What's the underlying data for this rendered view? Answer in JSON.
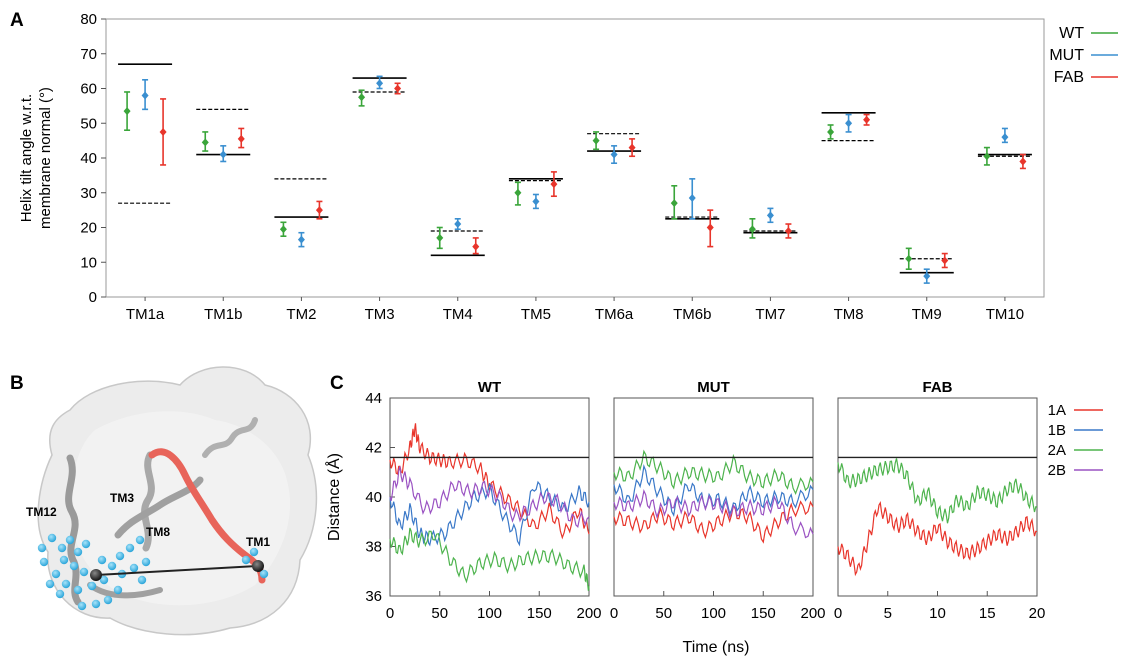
{
  "panel_labels": {
    "a": "A",
    "b": "B",
    "c": "C"
  },
  "colors": {
    "wt": "#3aa53a",
    "mut": "#3a8fd0",
    "fab": "#e8352b",
    "line_1a": "#e8352b",
    "line_1b": "#3a78c8",
    "line_2a": "#4db34d",
    "line_2b": "#9a52c2",
    "ref": "#000000",
    "helix_highlight": "#e8645a",
    "helix_gray": "#9a9a9a",
    "bead": "#37b6e6"
  },
  "structure_labels": [
    "TM12",
    "TM3",
    "TM8",
    "TM1"
  ],
  "chart_data": [
    {
      "type": "scatter",
      "ylabel": "Helix tilt angle w.r.t.\nmembrane normal (°)",
      "xlabel": "",
      "categories": [
        "TM1a",
        "TM1b",
        "TM2",
        "TM3",
        "TM4",
        "TM5",
        "TM6a",
        "TM6b",
        "TM7",
        "TM8",
        "TM9",
        "TM10"
      ],
      "yticks": [
        0,
        10,
        20,
        30,
        40,
        50,
        60,
        70,
        80
      ],
      "ylim": [
        0,
        80
      ],
      "legend": "top-right",
      "series": [
        {
          "name": "WT",
          "color": "#3aa53a",
          "values": [
            53.5,
            44.5,
            19.5,
            57.5,
            17,
            30,
            45,
            27,
            19.5,
            47.5,
            11,
            40.5
          ],
          "lower": [
            48,
            42,
            17.5,
            55,
            14,
            26.5,
            42.5,
            22.5,
            17,
            45.5,
            8,
            38
          ],
          "upper": [
            59,
            47.5,
            21.5,
            59.5,
            20,
            33,
            47.5,
            32,
            22.5,
            49.5,
            14,
            43
          ]
        },
        {
          "name": "MUT",
          "color": "#3a8fd0",
          "values": [
            58,
            41,
            16.5,
            61.5,
            21,
            27.5,
            41,
            28.5,
            23.5,
            50,
            6,
            46
          ],
          "lower": [
            54,
            39,
            14.5,
            60,
            19.5,
            25.5,
            38.5,
            22.5,
            21.5,
            47.5,
            4,
            44.5
          ],
          "upper": [
            62.5,
            43.5,
            18.5,
            63.5,
            22.5,
            29.5,
            43.5,
            34,
            25.5,
            52.5,
            8,
            48.5
          ]
        },
        {
          "name": "FAB",
          "color": "#e8352b",
          "values": [
            47.5,
            45.5,
            25,
            60,
            14.5,
            32.5,
            43,
            20,
            19,
            51,
            10.5,
            39
          ],
          "lower": [
            38,
            43,
            22.5,
            58.5,
            12.5,
            29,
            40.5,
            14.5,
            17,
            49.5,
            8.5,
            37
          ],
          "upper": [
            57,
            48.5,
            27.5,
            61.5,
            17,
            36,
            45.5,
            25,
            21,
            52.5,
            12.5,
            41
          ]
        }
      ],
      "reference_solid": [
        67,
        41,
        23,
        63,
        12,
        34,
        42,
        22.5,
        18.5,
        53,
        7,
        41
      ],
      "reference_dashed": [
        27,
        54,
        34,
        59,
        19,
        33.5,
        47,
        23,
        19,
        45,
        11,
        40.5
      ]
    },
    {
      "type": "line",
      "title": "WT",
      "ylabel": "Distance (Å)",
      "ylim": [
        36,
        44
      ],
      "yticks": [
        36,
        38,
        40,
        42,
        44
      ],
      "xlim": [
        0,
        200
      ],
      "xticks": [
        0,
        50,
        100,
        150,
        200
      ],
      "reference_line": 41.6,
      "series": [
        {
          "name": "1A",
          "color": "#e8352b",
          "t": [
            0,
            10,
            20,
            25,
            30,
            40,
            50,
            60,
            75,
            90,
            100,
            115,
            130,
            145,
            160,
            175,
            190,
            200
          ],
          "values": [
            41.5,
            41,
            42,
            42.8,
            42,
            41.6,
            41.5,
            41.4,
            41.5,
            41.2,
            40.5,
            40,
            39.5,
            38.8,
            39.5,
            38.5,
            39.5,
            38.5
          ]
        },
        {
          "name": "1B",
          "color": "#3a78c8",
          "t": [
            0,
            10,
            20,
            30,
            40,
            55,
            70,
            85,
            100,
            115,
            130,
            145,
            160,
            175,
            190,
            200
          ],
          "values": [
            40,
            38.8,
            39.5,
            38.5,
            38.3,
            38.5,
            39.3,
            40,
            40.3,
            39.2,
            38.3,
            40.5,
            40,
            39.5,
            40.2,
            39.8
          ]
        },
        {
          "name": "2A",
          "color": "#4db34d",
          "t": [
            0,
            10,
            20,
            30,
            45,
            60,
            75,
            90,
            105,
            120,
            135,
            150,
            165,
            180,
            195,
            200
          ],
          "values": [
            38.3,
            37.8,
            38.5,
            38.2,
            38.5,
            37.5,
            36.8,
            37.3,
            37.5,
            37.2,
            37.5,
            37.6,
            37.6,
            37.2,
            37,
            36.4
          ]
        },
        {
          "name": "2B",
          "color": "#9a52c2",
          "t": [
            0,
            10,
            20,
            35,
            50,
            65,
            80,
            95,
            110,
            125,
            140,
            155,
            170,
            185,
            200
          ],
          "values": [
            40,
            41,
            40.5,
            39.5,
            39.8,
            40.5,
            40.2,
            40.4,
            40,
            39.2,
            39.5,
            40,
            39.8,
            39,
            39.2
          ]
        }
      ]
    },
    {
      "type": "line",
      "title": "MUT",
      "ylim": [
        36,
        44
      ],
      "xlim": [
        0,
        200
      ],
      "xticks": [
        0,
        50,
        100,
        150,
        200
      ],
      "reference_line": 41.6,
      "series": [
        {
          "name": "1A",
          "color": "#e8352b",
          "t": [
            0,
            15,
            30,
            45,
            60,
            75,
            90,
            105,
            120,
            135,
            150,
            165,
            180,
            200
          ],
          "values": [
            39.2,
            39,
            38.8,
            39.3,
            38.9,
            39.2,
            38.6,
            39,
            39.4,
            39.2,
            38.4,
            39,
            39.5,
            39.6
          ]
        },
        {
          "name": "1B",
          "color": "#3a78c8",
          "t": [
            0,
            15,
            30,
            45,
            60,
            75,
            90,
            105,
            120,
            135,
            150,
            165,
            180,
            200
          ],
          "values": [
            40.5,
            39.8,
            41,
            40.2,
            39.5,
            40.5,
            39.8,
            39.9,
            39.5,
            40.2,
            39.8,
            40,
            39.8,
            40.3
          ]
        },
        {
          "name": "2A",
          "color": "#4db34d",
          "t": [
            0,
            15,
            30,
            45,
            60,
            75,
            90,
            105,
            120,
            135,
            150,
            165,
            180,
            200
          ],
          "values": [
            41,
            40.8,
            41.6,
            41.2,
            40.6,
            41,
            40.9,
            40.8,
            41.4,
            40.8,
            40.6,
            40.9,
            40.4,
            40.6
          ]
        },
        {
          "name": "2B",
          "color": "#9a52c2",
          "t": [
            0,
            15,
            30,
            45,
            60,
            75,
            90,
            105,
            120,
            135,
            150,
            165,
            180,
            200
          ],
          "values": [
            39.8,
            39.6,
            40,
            39.4,
            39.8,
            39.5,
            39.8,
            39.7,
            39.4,
            39.6,
            39.5,
            39.8,
            38.8,
            38.5
          ]
        }
      ]
    },
    {
      "type": "line",
      "title": "FAB",
      "ylim": [
        36,
        44
      ],
      "xlim": [
        0,
        20
      ],
      "xticks": [
        0,
        5,
        10,
        15,
        20
      ],
      "reference_line": 41.6,
      "series": [
        {
          "name": "1A",
          "color": "#e8352b",
          "t": [
            0,
            1,
            2,
            3,
            4,
            5,
            6,
            7,
            8,
            9,
            10,
            11,
            12,
            13,
            14,
            15,
            16,
            17,
            18,
            19,
            20
          ],
          "values": [
            38,
            37.6,
            37,
            38.2,
            39.6,
            39.2,
            38.8,
            39.1,
            38.6,
            38.3,
            38.8,
            38.2,
            37.9,
            37.7,
            37.9,
            38.2,
            38.5,
            38.3,
            38.6,
            39,
            38.6
          ]
        },
        {
          "name": "2A",
          "color": "#4db34d",
          "t": [
            0,
            1,
            2,
            3,
            4,
            5,
            6,
            7,
            8,
            9,
            10,
            11,
            12,
            13,
            14,
            15,
            16,
            17,
            18,
            19,
            20
          ],
          "values": [
            41.4,
            40.6,
            40.7,
            40.9,
            41.1,
            41.2,
            41.3,
            40.8,
            39.8,
            40.2,
            39.4,
            39.2,
            39.9,
            39.6,
            40.2,
            40.1,
            39.8,
            40.3,
            40.5,
            39.9,
            39.6
          ]
        }
      ]
    }
  ],
  "time_axis_label": "Time (ns)",
  "line_legend": [
    "1A",
    "1B",
    "2A",
    "2B"
  ]
}
